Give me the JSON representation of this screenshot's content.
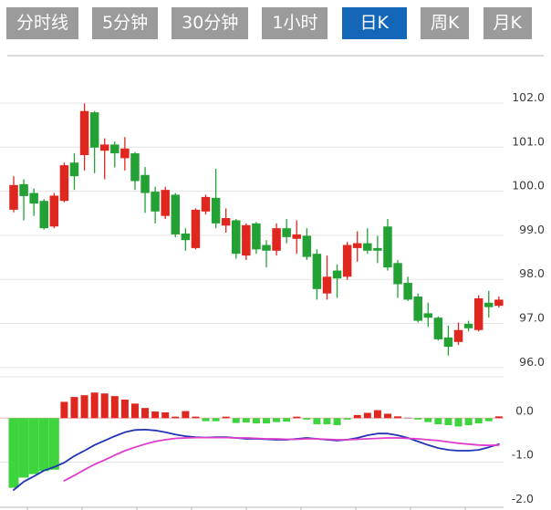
{
  "toolbar": {
    "tabs": [
      {
        "label": "分时线",
        "active": false
      },
      {
        "label": "5分钟",
        "active": false
      },
      {
        "label": "30分钟",
        "active": false
      },
      {
        "label": "1小时",
        "active": false
      },
      {
        "label": "日K",
        "active": true
      },
      {
        "label": "周K",
        "active": false
      },
      {
        "label": "月K",
        "active": false
      }
    ]
  },
  "colors": {
    "up_red": "#df261f",
    "down_green": "#23a135",
    "macd_green": "#3dd43d",
    "macd_red": "#df261f",
    "macd_flat": "#b9a5a5",
    "dif_line": "#2233b4",
    "dea_line": "#dd3ccc",
    "active_tab": "#1467b8",
    "tab_bg": "#9b9b9b",
    "grid": "#e3e3e3",
    "top_border": "#cfcfcf",
    "axis_line": "#b5b5b5",
    "axis_text": "#3c3c3c",
    "zero_line": "#efb6b6"
  },
  "chart_data": [
    {
      "type": "candlestick",
      "panel": "price",
      "legend_position": "none",
      "grid": true,
      "y_tick_labels": [
        "102.0",
        "101.0",
        "100.0",
        "99.0",
        "98.0",
        "97.0",
        "96.0"
      ],
      "y_tick_values": [
        102.0,
        101.0,
        100.0,
        99.0,
        98.0,
        97.0,
        96.0
      ],
      "ylim": [
        95.8,
        103.1
      ],
      "format": "ohlc",
      "candles": [
        [
          99.58,
          100.34,
          99.52,
          100.14
        ],
        [
          100.16,
          100.27,
          99.34,
          99.89
        ],
        [
          99.96,
          100.06,
          99.44,
          99.72
        ],
        [
          99.78,
          99.82,
          99.13,
          99.16
        ],
        [
          99.2,
          99.96,
          99.16,
          99.9
        ],
        [
          99.78,
          100.65,
          99.75,
          100.59
        ],
        [
          100.65,
          100.86,
          100.03,
          100.34
        ],
        [
          100.82,
          101.99,
          100.47,
          101.82
        ],
        [
          101.79,
          101.82,
          100.41,
          100.99
        ],
        [
          100.92,
          101.2,
          100.27,
          101.06
        ],
        [
          101.06,
          101.13,
          100.54,
          100.86
        ],
        [
          100.75,
          101.23,
          100.47,
          100.97
        ],
        [
          100.86,
          100.89,
          100.03,
          100.23
        ],
        [
          100.37,
          100.55,
          99.51,
          99.96
        ],
        [
          99.99,
          100.1,
          99.27,
          99.54
        ],
        [
          99.44,
          100.1,
          99.37,
          100.03
        ],
        [
          99.92,
          99.96,
          98.96,
          99.02
        ],
        [
          99.04,
          99.16,
          98.65,
          98.89
        ],
        [
          98.71,
          99.61,
          98.68,
          99.58
        ],
        [
          99.54,
          99.92,
          99.47,
          99.87
        ],
        [
          99.85,
          100.51,
          99.16,
          99.27
        ],
        [
          99.22,
          99.61,
          99.06,
          99.39
        ],
        [
          99.34,
          99.37,
          98.47,
          98.58
        ],
        [
          98.54,
          99.27,
          98.44,
          99.23
        ],
        [
          99.27,
          99.3,
          98.58,
          98.68
        ],
        [
          98.78,
          98.89,
          98.27,
          98.65
        ],
        [
          98.65,
          99.27,
          98.54,
          99.16
        ],
        [
          99.16,
          99.37,
          98.82,
          98.96
        ],
        [
          98.92,
          99.34,
          98.58,
          99.02
        ],
        [
          98.99,
          99.16,
          98.44,
          98.51
        ],
        [
          98.58,
          98.68,
          97.54,
          97.78
        ],
        [
          97.68,
          98.54,
          97.54,
          98.06
        ],
        [
          98.2,
          98.34,
          97.58,
          98.02
        ],
        [
          98.06,
          98.85,
          97.99,
          98.78
        ],
        [
          98.71,
          99.09,
          98.4,
          98.82
        ],
        [
          98.82,
          99.16,
          98.58,
          98.65
        ],
        [
          98.71,
          98.99,
          98.37,
          98.65
        ],
        [
          99.2,
          99.37,
          98.2,
          98.27
        ],
        [
          98.37,
          98.44,
          97.58,
          97.89
        ],
        [
          97.92,
          98.06,
          97.51,
          97.54
        ],
        [
          97.61,
          97.68,
          97.02,
          97.06
        ],
        [
          97.23,
          97.47,
          96.92,
          97.13
        ],
        [
          97.13,
          97.16,
          96.61,
          96.64
        ],
        [
          96.68,
          96.95,
          96.27,
          96.47
        ],
        [
          96.58,
          97.02,
          96.51,
          96.85
        ],
        [
          96.99,
          97.06,
          96.82,
          96.89
        ],
        [
          96.85,
          97.64,
          96.82,
          97.57
        ],
        [
          97.47,
          97.74,
          97.13,
          97.37
        ],
        [
          97.4,
          97.61,
          97.36,
          97.54
        ]
      ]
    },
    {
      "type": "bar",
      "panel": "macd",
      "grid": true,
      "y_tick_labels": [
        "0.0",
        "-1.0",
        "-2.0"
      ],
      "y_tick_values": [
        0.0,
        -1.0,
        -2.0
      ],
      "ylim": [
        -2.05,
        0.95
      ],
      "series": [
        {
          "name": "MACD-histogram",
          "type": "bar",
          "values": [
            -1.58,
            -1.35,
            -1.27,
            -1.2,
            -1.17,
            0.37,
            0.48,
            0.52,
            0.58,
            0.56,
            0.5,
            0.42,
            0.33,
            0.23,
            0.15,
            0.13,
            0.02,
            0.16,
            0.02,
            -0.07,
            -0.07,
            0.03,
            -0.11,
            -0.1,
            -0.12,
            -0.12,
            -0.09,
            -0.08,
            0.02,
            -0.02,
            -0.14,
            -0.14,
            -0.16,
            -0.02,
            0.07,
            0.12,
            0.18,
            0.1,
            0.04,
            0.0,
            -0.03,
            -0.09,
            -0.14,
            -0.16,
            -0.19,
            -0.16,
            -0.12,
            -0.07,
            0.04
          ]
        },
        {
          "name": "DIF",
          "type": "line",
          "values": [
            -1.63,
            -1.44,
            -1.32,
            -1.19,
            -1.11,
            -1.01,
            -0.86,
            -0.74,
            -0.61,
            -0.51,
            -0.41,
            -0.32,
            -0.27,
            -0.26,
            -0.28,
            -0.32,
            -0.37,
            -0.41,
            -0.43,
            -0.44,
            -0.43,
            -0.43,
            -0.45,
            -0.47,
            -0.47,
            -0.48,
            -0.49,
            -0.49,
            -0.47,
            -0.45,
            -0.47,
            -0.49,
            -0.51,
            -0.49,
            -0.45,
            -0.39,
            -0.35,
            -0.35,
            -0.39,
            -0.45,
            -0.53,
            -0.61,
            -0.68,
            -0.72,
            -0.74,
            -0.74,
            -0.72,
            -0.66,
            -0.59
          ]
        },
        {
          "name": "DEA",
          "type": "line",
          "values": [
            null,
            null,
            null,
            null,
            null,
            -1.42,
            -1.3,
            -1.17,
            -1.05,
            -0.95,
            -0.84,
            -0.74,
            -0.66,
            -0.59,
            -0.53,
            -0.49,
            -0.46,
            -0.45,
            -0.44,
            -0.44,
            -0.44,
            -0.44,
            -0.45,
            -0.45,
            -0.46,
            -0.47,
            -0.47,
            -0.48,
            -0.48,
            -0.47,
            -0.47,
            -0.48,
            -0.49,
            -0.49,
            -0.48,
            -0.47,
            -0.46,
            -0.45,
            -0.45,
            -0.46,
            -0.47,
            -0.49,
            -0.51,
            -0.54,
            -0.57,
            -0.59,
            -0.61,
            -0.62,
            -0.61
          ]
        }
      ]
    }
  ]
}
